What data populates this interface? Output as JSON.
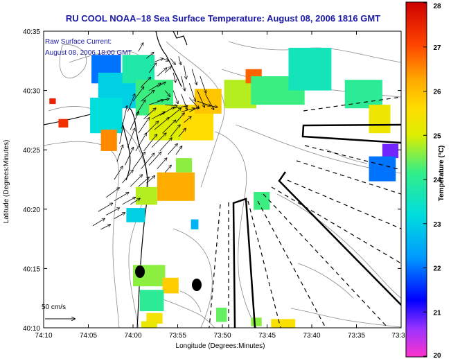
{
  "chart_data": {
    "type": "heatmap",
    "title": "RU COOL  NOAA–18  Sea Surface Temperature:  August 08, 2006 1816 GMT",
    "annotation_line1": "Raw Surface Current:",
    "annotation_line2": "August 08, 2006 18:00 GMT",
    "scale_label": "50 cm/s",
    "xlabel": "Longitude (Degrees:Minutes)",
    "ylabel": "Latitude (Degrees:Minutes)",
    "x_ticks": [
      "74:10",
      "74:05",
      "74:00",
      "73:55",
      "73:50",
      "73:45",
      "73:40",
      "73:35",
      "73:3"
    ],
    "y_ticks": [
      "40:35",
      "40:30",
      "40:25",
      "40:20",
      "40:15",
      "40:10"
    ],
    "xlim": [
      -74.1667,
      -73.5
    ],
    "ylim": [
      40.1667,
      40.5833
    ],
    "colorbar": {
      "label": "Temperature (°C)",
      "ticks": [
        "28",
        "27",
        "26",
        "25",
        "24",
        "23",
        "22",
        "21",
        "20"
      ],
      "range": [
        20,
        28
      ]
    },
    "sst_patches": [
      {
        "lon": -74.05,
        "lat": 40.53,
        "w": 0.055,
        "h": 0.04,
        "temp": 22.0
      },
      {
        "lon": -74.03,
        "lat": 40.5,
        "w": 0.07,
        "h": 0.05,
        "temp": 23.0
      },
      {
        "lon": -74.05,
        "lat": 40.465,
        "w": 0.06,
        "h": 0.05,
        "temp": 23.2
      },
      {
        "lon": -74.045,
        "lat": 40.43,
        "w": 0.03,
        "h": 0.03,
        "temp": 26.5
      },
      {
        "lon": -73.99,
        "lat": 40.53,
        "w": 0.06,
        "h": 0.04,
        "temp": 23.8
      },
      {
        "lon": -73.96,
        "lat": 40.49,
        "w": 0.07,
        "h": 0.05,
        "temp": 24.2
      },
      {
        "lon": -73.94,
        "lat": 40.455,
        "w": 0.06,
        "h": 0.05,
        "temp": 25.0
      },
      {
        "lon": -73.88,
        "lat": 40.455,
        "w": 0.06,
        "h": 0.05,
        "temp": 25.6
      },
      {
        "lon": -73.86,
        "lat": 40.485,
        "w": 0.05,
        "h": 0.035,
        "temp": 25.9
      },
      {
        "lon": -73.8,
        "lat": 40.495,
        "w": 0.06,
        "h": 0.04,
        "temp": 24.8
      },
      {
        "lon": -73.775,
        "lat": 40.52,
        "w": 0.03,
        "h": 0.02,
        "temp": 26.8
      },
      {
        "lon": -73.73,
        "lat": 40.5,
        "w": 0.1,
        "h": 0.04,
        "temp": 24.2
      },
      {
        "lon": -73.67,
        "lat": 40.53,
        "w": 0.08,
        "h": 0.06,
        "temp": 23.6
      },
      {
        "lon": -73.57,
        "lat": 40.495,
        "w": 0.07,
        "h": 0.04,
        "temp": 24.0
      },
      {
        "lon": -73.54,
        "lat": 40.46,
        "w": 0.04,
        "h": 0.04,
        "temp": 25.3
      },
      {
        "lon": -73.52,
        "lat": 40.415,
        "w": 0.03,
        "h": 0.02,
        "temp": 20.8
      },
      {
        "lon": -73.535,
        "lat": 40.39,
        "w": 0.05,
        "h": 0.035,
        "temp": 22.0
      },
      {
        "lon": -74.13,
        "lat": 40.454,
        "w": 0.018,
        "h": 0.012,
        "temp": 27.3
      },
      {
        "lon": -74.15,
        "lat": 40.485,
        "w": 0.012,
        "h": 0.008,
        "temp": 27.5
      },
      {
        "lon": -73.92,
        "lat": 40.365,
        "w": 0.07,
        "h": 0.04,
        "temp": 26.2
      },
      {
        "lon": -73.905,
        "lat": 40.395,
        "w": 0.03,
        "h": 0.02,
        "temp": 24.6
      },
      {
        "lon": -73.975,
        "lat": 40.352,
        "w": 0.04,
        "h": 0.025,
        "temp": 24.8
      },
      {
        "lon": -73.995,
        "lat": 40.325,
        "w": 0.035,
        "h": 0.02,
        "temp": 23.0
      },
      {
        "lon": -73.76,
        "lat": 40.345,
        "w": 0.03,
        "h": 0.025,
        "temp": 24.2
      },
      {
        "lon": -73.885,
        "lat": 40.312,
        "w": 0.014,
        "h": 0.014,
        "temp": 22.6
      },
      {
        "lon": -73.97,
        "lat": 40.24,
        "w": 0.06,
        "h": 0.03,
        "temp": 24.6
      },
      {
        "lon": -73.93,
        "lat": 40.226,
        "w": 0.03,
        "h": 0.022,
        "temp": 25.8
      },
      {
        "lon": -73.965,
        "lat": 40.205,
        "w": 0.045,
        "h": 0.03,
        "temp": 24.0
      },
      {
        "lon": -73.96,
        "lat": 40.18,
        "w": 0.03,
        "h": 0.015,
        "temp": 25.4
      },
      {
        "lon": -73.835,
        "lat": 40.185,
        "w": 0.02,
        "h": 0.02,
        "temp": 24.4
      },
      {
        "lon": -73.77,
        "lat": 40.175,
        "w": 0.02,
        "h": 0.012,
        "temp": 24.6
      },
      {
        "lon": -73.72,
        "lat": 40.173,
        "w": 0.045,
        "h": 0.012,
        "temp": 25.5
      },
      {
        "lon": -73.97,
        "lat": 40.17,
        "w": 0.03,
        "h": 0.012,
        "temp": 25.2
      }
    ],
    "current_arrows": [
      {
        "lon": -73.99,
        "lat": 40.555,
        "u": 8,
        "v": 14
      },
      {
        "lon": -73.975,
        "lat": 40.545,
        "u": 12,
        "v": 10
      },
      {
        "lon": -73.96,
        "lat": 40.54,
        "u": 14,
        "v": 6
      },
      {
        "lon": -73.945,
        "lat": 40.545,
        "u": 10,
        "v": -4
      },
      {
        "lon": -73.93,
        "lat": 40.545,
        "u": 8,
        "v": -10
      },
      {
        "lon": -73.915,
        "lat": 40.548,
        "u": 4,
        "v": -14
      },
      {
        "lon": -73.905,
        "lat": 40.535,
        "u": 4,
        "v": -22
      },
      {
        "lon": -73.89,
        "lat": 40.53,
        "u": 8,
        "v": -26
      },
      {
        "lon": -73.875,
        "lat": 40.52,
        "u": 10,
        "v": -28
      },
      {
        "lon": -73.97,
        "lat": 40.525,
        "u": 12,
        "v": 16
      },
      {
        "lon": -73.955,
        "lat": 40.52,
        "u": 16,
        "v": 14
      },
      {
        "lon": -73.94,
        "lat": 40.525,
        "u": 10,
        "v": 10
      },
      {
        "lon": -73.925,
        "lat": 40.525,
        "u": 4,
        "v": -16
      },
      {
        "lon": -73.91,
        "lat": 40.52,
        "u": 6,
        "v": -24
      },
      {
        "lon": -73.895,
        "lat": 40.51,
        "u": 10,
        "v": -30
      },
      {
        "lon": -73.88,
        "lat": 40.5,
        "u": 12,
        "v": -28
      },
      {
        "lon": -73.865,
        "lat": 40.495,
        "u": 14,
        "v": -26
      },
      {
        "lon": -73.985,
        "lat": 40.505,
        "u": 16,
        "v": 16
      },
      {
        "lon": -73.97,
        "lat": 40.5,
        "u": 20,
        "v": 12
      },
      {
        "lon": -73.955,
        "lat": 40.505,
        "u": 14,
        "v": 8
      },
      {
        "lon": -73.94,
        "lat": 40.5,
        "u": 8,
        "v": -10
      },
      {
        "lon": -73.925,
        "lat": 40.5,
        "u": 8,
        "v": -22
      },
      {
        "lon": -73.91,
        "lat": 40.495,
        "u": 10,
        "v": -26
      },
      {
        "lon": -73.895,
        "lat": 40.49,
        "u": 16,
        "v": -18
      },
      {
        "lon": -73.88,
        "lat": 40.485,
        "u": 22,
        "v": -8
      },
      {
        "lon": -73.865,
        "lat": 40.48,
        "u": 20,
        "v": -4
      },
      {
        "lon": -74.0,
        "lat": 40.485,
        "u": 18,
        "v": 24
      },
      {
        "lon": -73.985,
        "lat": 40.485,
        "u": 22,
        "v": 18
      },
      {
        "lon": -73.97,
        "lat": 40.48,
        "u": 24,
        "v": 8
      },
      {
        "lon": -73.955,
        "lat": 40.485,
        "u": 20,
        "v": 4
      },
      {
        "lon": -73.94,
        "lat": 40.48,
        "u": 20,
        "v": -2
      },
      {
        "lon": -73.925,
        "lat": 40.475,
        "u": 24,
        "v": 4
      },
      {
        "lon": -73.91,
        "lat": 40.47,
        "u": 22,
        "v": 6
      },
      {
        "lon": -73.895,
        "lat": 40.47,
        "u": 16,
        "v": 8
      },
      {
        "lon": -74.01,
        "lat": 40.47,
        "u": 12,
        "v": 30
      },
      {
        "lon": -73.995,
        "lat": 40.465,
        "u": 16,
        "v": 26
      },
      {
        "lon": -73.98,
        "lat": 40.46,
        "u": 20,
        "v": 18
      },
      {
        "lon": -73.965,
        "lat": 40.46,
        "u": 22,
        "v": 12
      },
      {
        "lon": -73.95,
        "lat": 40.465,
        "u": 24,
        "v": 14
      },
      {
        "lon": -73.935,
        "lat": 40.46,
        "u": 22,
        "v": 18
      },
      {
        "lon": -73.92,
        "lat": 40.455,
        "u": 14,
        "v": 16
      },
      {
        "lon": -73.905,
        "lat": 40.455,
        "u": 12,
        "v": 10
      },
      {
        "lon": -74.02,
        "lat": 40.45,
        "u": 8,
        "v": 34
      },
      {
        "lon": -74.005,
        "lat": 40.445,
        "u": 14,
        "v": 30
      },
      {
        "lon": -73.99,
        "lat": 40.44,
        "u": 18,
        "v": 26
      },
      {
        "lon": -73.975,
        "lat": 40.44,
        "u": 20,
        "v": 20
      },
      {
        "lon": -73.96,
        "lat": 40.445,
        "u": 24,
        "v": 20
      },
      {
        "lon": -73.945,
        "lat": 40.44,
        "u": 22,
        "v": 22
      },
      {
        "lon": -73.93,
        "lat": 40.435,
        "u": 16,
        "v": 20
      },
      {
        "lon": -73.915,
        "lat": 40.435,
        "u": 12,
        "v": 14
      },
      {
        "lon": -74.025,
        "lat": 40.425,
        "u": 6,
        "v": 30
      },
      {
        "lon": -74.01,
        "lat": 40.42,
        "u": 12,
        "v": 32
      },
      {
        "lon": -73.995,
        "lat": 40.415,
        "u": 18,
        "v": 30
      },
      {
        "lon": -73.98,
        "lat": 40.415,
        "u": 22,
        "v": 28
      },
      {
        "lon": -73.965,
        "lat": 40.42,
        "u": 24,
        "v": 24
      },
      {
        "lon": -73.95,
        "lat": 40.415,
        "u": 20,
        "v": 22
      },
      {
        "lon": -73.935,
        "lat": 40.41,
        "u": 16,
        "v": 18
      },
      {
        "lon": -73.92,
        "lat": 40.41,
        "u": 10,
        "v": 14
      },
      {
        "lon": -74.03,
        "lat": 40.4,
        "u": 10,
        "v": 28
      },
      {
        "lon": -74.015,
        "lat": 40.395,
        "u": 14,
        "v": 30
      },
      {
        "lon": -74.0,
        "lat": 40.39,
        "u": 20,
        "v": 28
      },
      {
        "lon": -73.985,
        "lat": 40.39,
        "u": 22,
        "v": 26
      },
      {
        "lon": -73.97,
        "lat": 40.395,
        "u": 20,
        "v": 22
      },
      {
        "lon": -73.955,
        "lat": 40.39,
        "u": 16,
        "v": 18
      },
      {
        "lon": -73.94,
        "lat": 40.385,
        "u": 10,
        "v": 12
      },
      {
        "lon": -74.035,
        "lat": 40.375,
        "u": 14,
        "v": 22
      },
      {
        "lon": -74.02,
        "lat": 40.37,
        "u": 18,
        "v": 22
      },
      {
        "lon": -74.005,
        "lat": 40.365,
        "u": 20,
        "v": 20
      },
      {
        "lon": -73.99,
        "lat": 40.365,
        "u": 18,
        "v": 16
      },
      {
        "lon": -73.975,
        "lat": 40.37,
        "u": 14,
        "v": 12
      },
      {
        "lon": -74.05,
        "lat": 40.35,
        "u": 22,
        "v": 16
      },
      {
        "lon": -74.035,
        "lat": 40.345,
        "u": 24,
        "v": 14
      },
      {
        "lon": -74.02,
        "lat": 40.34,
        "u": 22,
        "v": 12
      },
      {
        "lon": -74.005,
        "lat": 40.34,
        "u": 16,
        "v": 10
      },
      {
        "lon": -74.065,
        "lat": 40.33,
        "u": 24,
        "v": 14
      },
      {
        "lon": -74.05,
        "lat": 40.325,
        "u": 22,
        "v": 12
      },
      {
        "lon": -74.035,
        "lat": 40.32,
        "u": 18,
        "v": 10
      },
      {
        "lon": -74.075,
        "lat": 40.31,
        "u": 20,
        "v": 12
      },
      {
        "lon": -74.06,
        "lat": 40.305,
        "u": 16,
        "v": 8
      }
    ],
    "arrow_scale_cms": 50
  }
}
